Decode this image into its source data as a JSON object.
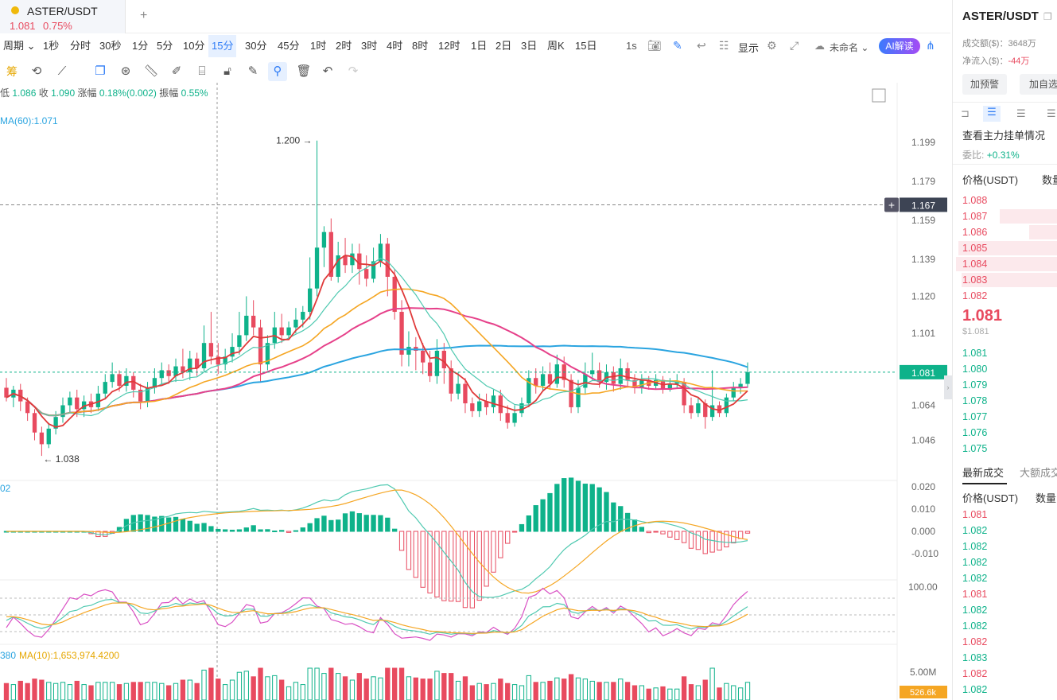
{
  "tab": {
    "symbol": "ASTER/USDT",
    "price": "1.081",
    "change": "0.75%",
    "add": "+"
  },
  "intervals": [
    "周期 ⌄",
    "1秒",
    "分时",
    "30秒",
    "1分",
    "5分",
    "10分",
    "15分",
    "30分",
    "45分",
    "1时",
    "2时",
    "3时",
    "4时",
    "8时",
    "12时",
    "1日",
    "2日",
    "3日",
    "周K",
    "15日"
  ],
  "active_interval": "15分",
  "toolbar": {
    "seconds": "1s",
    "display": "显示",
    "layout_name": "未命名 ⌄",
    "ai": "AI解读"
  },
  "drawing_tools_label": "筹",
  "info_bar": {
    "low_label": "低",
    "low": "1.086",
    "close_label": "收",
    "close": "1.090",
    "change_label": "涨幅",
    "change": "0.18%(0.002)",
    "amp_label": "振幅",
    "amp": "0.55%"
  },
  "ma_label": "MA(60):1.071",
  "macd_left": "02",
  "vol_label": "380",
  "vol_ma_label": "MA(10):1,653,974.4200",
  "chart_data": {
    "type": "candlestick",
    "interval": "15分",
    "price_axis_ticks": [
      "1.199",
      "1.179",
      "1.159",
      "1.139",
      "1.120",
      "1.101",
      "1.081",
      "1.064",
      "1.046"
    ],
    "price_range": [
      1.036,
      1.215
    ],
    "high_marker": "1.200",
    "low_marker": "← 1.038",
    "crosshair_price": "1.167",
    "last_price_tag": "1.081",
    "macd_ticks": [
      "0.020",
      "0.010",
      "0.000",
      "-0.010"
    ],
    "kdj_ticks": [
      "100.00"
    ],
    "volume_ticks": [
      "5.00M"
    ],
    "last_volume_tag": "526.6k",
    "candles": [
      [
        1.073,
        1.068,
        1.078,
        1.066
      ],
      [
        1.068,
        1.072,
        1.074,
        1.063
      ],
      [
        1.072,
        1.066,
        1.075,
        1.061
      ],
      [
        1.066,
        1.06,
        1.068,
        1.056
      ],
      [
        1.06,
        1.05,
        1.062,
        1.046
      ],
      [
        1.05,
        1.044,
        1.053,
        1.038
      ],
      [
        1.044,
        1.052,
        1.055,
        1.042
      ],
      [
        1.052,
        1.058,
        1.061,
        1.049
      ],
      [
        1.058,
        1.064,
        1.068,
        1.055
      ],
      [
        1.064,
        1.068,
        1.071,
        1.06
      ],
      [
        1.068,
        1.062,
        1.072,
        1.058
      ],
      [
        1.062,
        1.066,
        1.069,
        1.058
      ],
      [
        1.066,
        1.063,
        1.07,
        1.06
      ],
      [
        1.063,
        1.07,
        1.074,
        1.061
      ],
      [
        1.07,
        1.076,
        1.08,
        1.067
      ],
      [
        1.076,
        1.08,
        1.086,
        1.073
      ],
      [
        1.08,
        1.074,
        1.082,
        1.071
      ],
      [
        1.074,
        1.079,
        1.083,
        1.071
      ],
      [
        1.079,
        1.072,
        1.081,
        1.068
      ],
      [
        1.072,
        1.066,
        1.075,
        1.062
      ],
      [
        1.066,
        1.073,
        1.076,
        1.063
      ],
      [
        1.073,
        1.078,
        1.083,
        1.07
      ],
      [
        1.078,
        1.082,
        1.086,
        1.074
      ],
      [
        1.082,
        1.079,
        1.085,
        1.075
      ],
      [
        1.079,
        1.084,
        1.088,
        1.076
      ],
      [
        1.084,
        1.081,
        1.093,
        1.078
      ],
      [
        1.081,
        1.088,
        1.092,
        1.077
      ],
      [
        1.088,
        1.083,
        1.091,
        1.079
      ],
      [
        1.083,
        1.096,
        1.105,
        1.081
      ],
      [
        1.096,
        1.089,
        1.112,
        1.085
      ],
      [
        1.089,
        1.085,
        1.096,
        1.08
      ],
      [
        1.085,
        1.089,
        1.093,
        1.082
      ],
      [
        1.089,
        1.094,
        1.101,
        1.086
      ],
      [
        1.094,
        1.1,
        1.112,
        1.09
      ],
      [
        1.1,
        1.11,
        1.12,
        1.097
      ],
      [
        1.11,
        1.104,
        1.118,
        1.1
      ],
      [
        1.104,
        1.085,
        1.108,
        1.076
      ],
      [
        1.085,
        1.096,
        1.1,
        1.082
      ],
      [
        1.096,
        1.104,
        1.112,
        1.093
      ],
      [
        1.104,
        1.1,
        1.111,
        1.096
      ],
      [
        1.1,
        1.104,
        1.107,
        1.098
      ],
      [
        1.104,
        1.108,
        1.114,
        1.101
      ],
      [
        1.108,
        1.112,
        1.115,
        1.104
      ],
      [
        1.112,
        1.124,
        1.14,
        1.108
      ],
      [
        1.124,
        1.145,
        1.2,
        1.12
      ],
      [
        1.145,
        1.153,
        1.156,
        1.135
      ],
      [
        1.153,
        1.13,
        1.16,
        1.128
      ],
      [
        1.13,
        1.141,
        1.148,
        1.127
      ],
      [
        1.141,
        1.136,
        1.15,
        1.132
      ],
      [
        1.136,
        1.142,
        1.147,
        1.132
      ],
      [
        1.142,
        1.134,
        1.147,
        1.126
      ],
      [
        1.134,
        1.129,
        1.141,
        1.125
      ],
      [
        1.129,
        1.138,
        1.145,
        1.127
      ],
      [
        1.138,
        1.147,
        1.152,
        1.135
      ],
      [
        1.147,
        1.13,
        1.15,
        1.12
      ],
      [
        1.13,
        1.112,
        1.134,
        1.108
      ],
      [
        1.112,
        1.09,
        1.118,
        1.084
      ],
      [
        1.09,
        1.094,
        1.102,
        1.084
      ],
      [
        1.094,
        1.092,
        1.099,
        1.082
      ],
      [
        1.092,
        1.086,
        1.096,
        1.08
      ],
      [
        1.086,
        1.079,
        1.092,
        1.076
      ],
      [
        1.079,
        1.092,
        1.098,
        1.075
      ],
      [
        1.092,
        1.083,
        1.096,
        1.075
      ],
      [
        1.083,
        1.07,
        1.087,
        1.066
      ],
      [
        1.07,
        1.075,
        1.081,
        1.067
      ],
      [
        1.075,
        1.065,
        1.078,
        1.06
      ],
      [
        1.065,
        1.061,
        1.068,
        1.058
      ],
      [
        1.061,
        1.066,
        1.07,
        1.058
      ],
      [
        1.066,
        1.063,
        1.07,
        1.059
      ],
      [
        1.063,
        1.069,
        1.072,
        1.06
      ],
      [
        1.069,
        1.06,
        1.072,
        1.056
      ],
      [
        1.06,
        1.055,
        1.064,
        1.052
      ],
      [
        1.055,
        1.06,
        1.064,
        1.053
      ],
      [
        1.06,
        1.065,
        1.068,
        1.058
      ],
      [
        1.065,
        1.078,
        1.082,
        1.063
      ],
      [
        1.078,
        1.074,
        1.083,
        1.07
      ],
      [
        1.074,
        1.08,
        1.084,
        1.071
      ],
      [
        1.08,
        1.075,
        1.086,
        1.072
      ],
      [
        1.075,
        1.085,
        1.09,
        1.073
      ],
      [
        1.085,
        1.077,
        1.089,
        1.073
      ],
      [
        1.077,
        1.063,
        1.08,
        1.06
      ],
      [
        1.063,
        1.073,
        1.077,
        1.06
      ],
      [
        1.073,
        1.08,
        1.086,
        1.07
      ],
      [
        1.08,
        1.082,
        1.091,
        1.077
      ],
      [
        1.082,
        1.076,
        1.086,
        1.073
      ],
      [
        1.076,
        1.081,
        1.085,
        1.072
      ],
      [
        1.081,
        1.075,
        1.084,
        1.071
      ],
      [
        1.075,
        1.083,
        1.088,
        1.072
      ],
      [
        1.083,
        1.077,
        1.086,
        1.073
      ],
      [
        1.077,
        1.073,
        1.08,
        1.07
      ],
      [
        1.073,
        1.077,
        1.08,
        1.07
      ],
      [
        1.077,
        1.074,
        1.079,
        1.072
      ],
      [
        1.074,
        1.077,
        1.08,
        1.072
      ],
      [
        1.077,
        1.072,
        1.079,
        1.07
      ],
      [
        1.072,
        1.075,
        1.078,
        1.071
      ],
      [
        1.075,
        1.076,
        1.08,
        1.073
      ],
      [
        1.076,
        1.064,
        1.078,
        1.06
      ],
      [
        1.064,
        1.06,
        1.068,
        1.057
      ],
      [
        1.06,
        1.065,
        1.068,
        1.058
      ],
      [
        1.065,
        1.058,
        1.067,
        1.052
      ],
      [
        1.058,
        1.064,
        1.082,
        1.056
      ],
      [
        1.064,
        1.06,
        1.066,
        1.058
      ],
      [
        1.06,
        1.068,
        1.07,
        1.058
      ],
      [
        1.068,
        1.073,
        1.076,
        1.066
      ],
      [
        1.073,
        1.075,
        1.078,
        1.07
      ],
      [
        1.075,
        1.081,
        1.086,
        1.073
      ]
    ]
  },
  "sidebar": {
    "title": "ASTER/USDT",
    "volume_label": "成交额($)：",
    "volume": "3648万",
    "netflow_label": "净流入($)：",
    "netflow": "-44万",
    "alert_button": "加预警",
    "watch_button": "加自选",
    "order_book_title": "查看主力挂单情况",
    "ratio_label": "委比:",
    "ratio": "+0.31%",
    "price_header": "价格(USDT)",
    "qty_header": "数量",
    "asks": [
      "1.088",
      "1.087",
      "1.086",
      "1.085",
      "1.084",
      "1.083",
      "1.082"
    ],
    "ask_depth": [
      0.0,
      0.55,
      0.27,
      0.95,
      0.97,
      0.92,
      0.0
    ],
    "last_price": "1.081",
    "last_price_usd": "$1.081",
    "bids": [
      "1.081",
      "1.080",
      "1.079",
      "1.078",
      "1.077",
      "1.076",
      "1.075"
    ],
    "trades_tab": "最新成交",
    "big_trades_tab": "大额成交",
    "trades_price_header": "价格(USDT)",
    "trades_qty_header": "数量",
    "trades": [
      "1.081",
      "1.082",
      "1.082",
      "1.082",
      "1.082",
      "1.081",
      "1.082",
      "1.082",
      "1.082",
      "1.083",
      "1.082",
      "1.082"
    ],
    "trade_colors": [
      "red",
      "green",
      "green",
      "green",
      "green",
      "red",
      "green",
      "green",
      "red",
      "green",
      "red",
      "green"
    ]
  },
  "colors": {
    "up": "#0eb28a",
    "down": "#e84a5f",
    "ma5": "#e03a3a",
    "ma10": "#4fc9b0",
    "ma20": "#f5a623",
    "ma30": "#e6418a",
    "ma60": "#2aa4e0"
  }
}
